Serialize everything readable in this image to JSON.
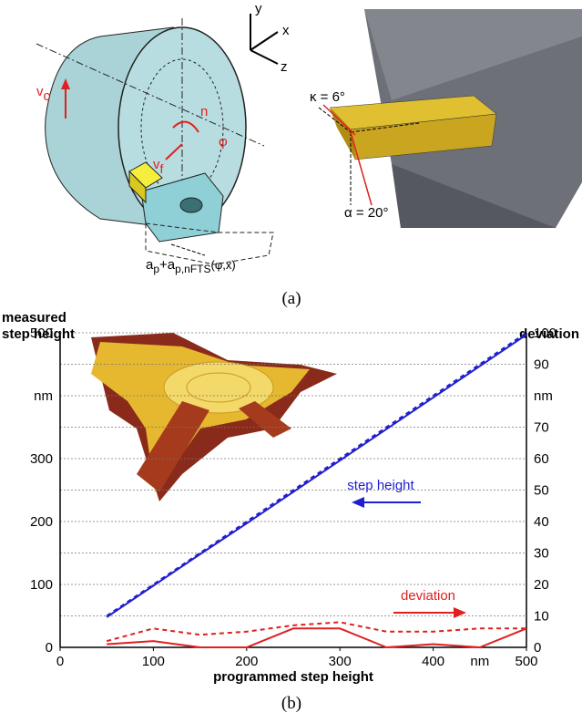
{
  "figure_a": {
    "axis_y": "y",
    "axis_x": "x",
    "axis_z": "z",
    "vc": {
      "main": "v",
      "sub": "c"
    },
    "n": "n",
    "phi": "φ",
    "vf": {
      "main": "v",
      "sub": "f"
    },
    "depth": {
      "a1": "a",
      "p1": "p",
      "plus": "+a",
      "p2": "p,nFTS",
      "args": "(φ,x)"
    },
    "kappa": "κ = 6°",
    "alpha": "α = 20°",
    "caption": "(a)"
  },
  "chart_data": {
    "type": "line",
    "y_label": [
      "measured",
      "step height"
    ],
    "y2_label": "deviation",
    "x_label": "programmed step height",
    "xlim": [
      0,
      500
    ],
    "xticks": [
      0,
      100,
      200,
      300,
      400,
      {
        "value": 450,
        "label": "nm"
      },
      500
    ],
    "ylim": [
      0,
      500
    ],
    "yticks": [
      0,
      100,
      200,
      300,
      {
        "value": 400,
        "label": "nm"
      },
      500
    ],
    "y2lim": [
      0,
      100
    ],
    "y2ticks": [
      0,
      10,
      20,
      30,
      40,
      50,
      60,
      70,
      {
        "value": 80,
        "label": "nm"
      },
      90,
      100
    ],
    "grid": true,
    "series": [
      {
        "name": "step height",
        "color": "#1f1fd0",
        "dashed": false,
        "x": [
          50,
          100,
          150,
          200,
          250,
          300,
          350,
          400,
          450,
          500
        ],
        "values": [
          48,
          98,
          148,
          197,
          247,
          297,
          347,
          397,
          447,
          497
        ]
      },
      {
        "color": "#1f1fd0",
        "dashed": true,
        "x": [
          50,
          100,
          150,
          200,
          250,
          300,
          350,
          400,
          450,
          500
        ],
        "values": [
          50,
          100,
          150,
          200,
          250,
          300,
          350,
          400,
          450,
          500
        ]
      },
      {
        "name": "deviation",
        "color": "#e02020",
        "dashed": false,
        "axis": "y2",
        "x": [
          50,
          100,
          150,
          200,
          250,
          300,
          350,
          400,
          450,
          500
        ],
        "values": [
          1,
          2,
          0,
          0,
          6,
          6,
          0,
          1,
          0,
          6
        ]
      },
      {
        "color": "#e02020",
        "dashed": true,
        "axis": "y2",
        "x": [
          50,
          100,
          150,
          200,
          250,
          300,
          350,
          400,
          450,
          500
        ],
        "values": [
          2,
          6,
          4,
          5,
          7,
          8,
          5,
          5,
          6,
          6
        ]
      }
    ]
  },
  "caption_b": "(b)"
}
